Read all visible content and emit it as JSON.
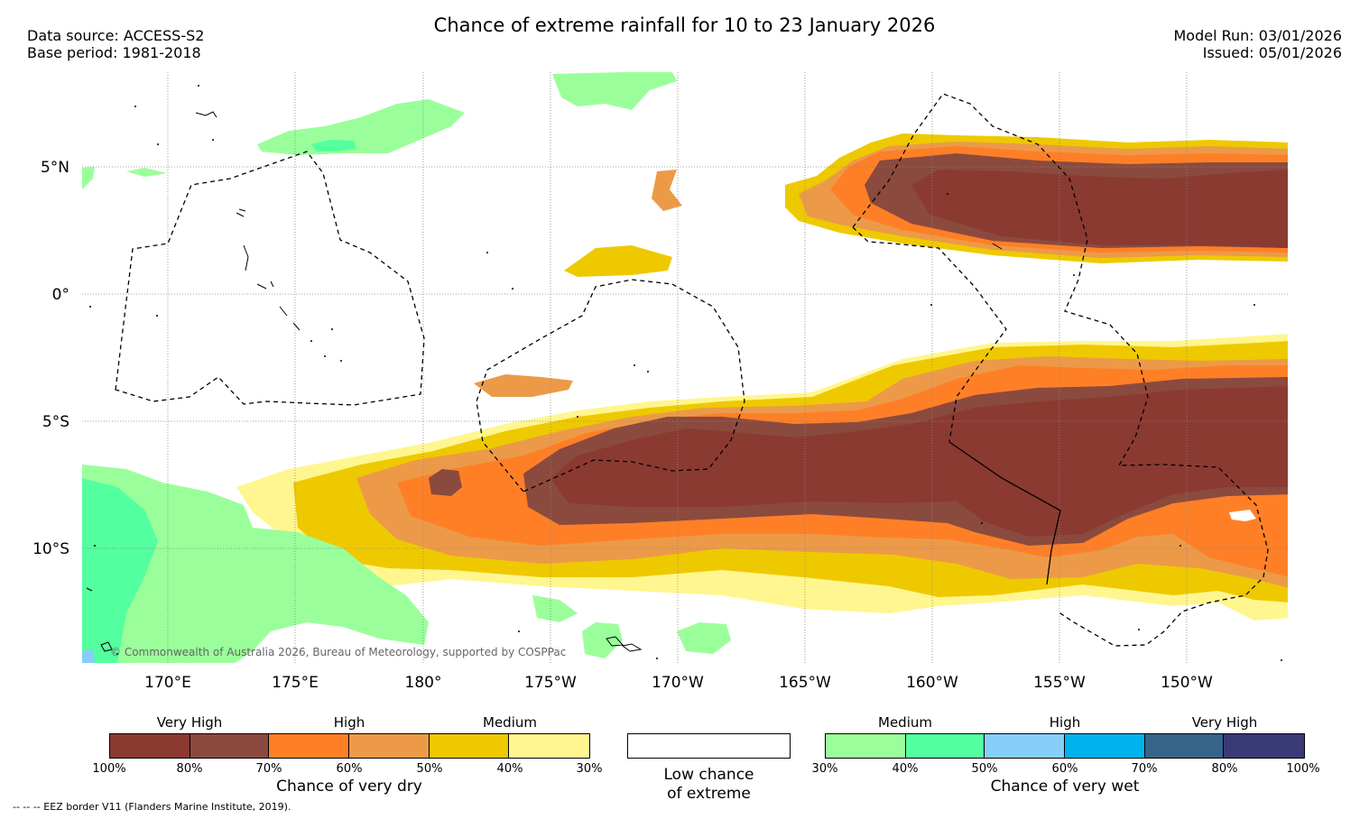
{
  "header": {
    "title": "Chance of extreme rainfall for 10 to 23 January 2026",
    "data_source": "Data source: ACCESS-S2",
    "base_period": "Base period: 1981-2018",
    "model_run": "Model Run: 03/01/2026",
    "issued": "Issued: 05/01/2026"
  },
  "map": {
    "lat_labels": [
      "5°N",
      "0°",
      "5°S",
      "10°S"
    ],
    "lon_labels": [
      "170°E",
      "175°E",
      "180°",
      "175°W",
      "170°W",
      "165°W",
      "160°W",
      "155°W",
      "150°W"
    ],
    "copyright": "© Commonwealth of Australia 2026, Bureau of Meteorology, supported by COSPPac",
    "colors": {
      "dry_100_80": "#8b3a32",
      "dry_80_70": "#8b4a3e",
      "dry_70_60": "#ff7f27",
      "dry_60_50": "#ec9a48",
      "dry_50_40": "#eec900",
      "dry_40_30": "#fff68f",
      "wet_30_40": "#9aff9a",
      "wet_40_50": "#54ff9f",
      "wet_50_60": "#87cefa",
      "wet_60_70": "#00b2ee",
      "wet_70_80": "#36648b",
      "wet_80_100": "#3a3a78",
      "low": "#ffffff"
    }
  },
  "legend": {
    "dry": {
      "categories": [
        "Very High",
        "High",
        "Medium"
      ],
      "ticks": [
        "100%",
        "80%",
        "70%",
        "60%",
        "50%",
        "40%",
        "30%"
      ],
      "title": "Chance of very dry"
    },
    "low": {
      "line1": "Low chance",
      "line2": "of extreme"
    },
    "wet": {
      "categories": [
        "Medium",
        "High",
        "Very High"
      ],
      "ticks": [
        "30%",
        "40%",
        "50%",
        "60%",
        "70%",
        "80%",
        "100%"
      ],
      "title": "Chance of very wet"
    },
    "footnote": "-- -- -- EEZ border V11 (Flanders Marine Institute, 2019)."
  }
}
